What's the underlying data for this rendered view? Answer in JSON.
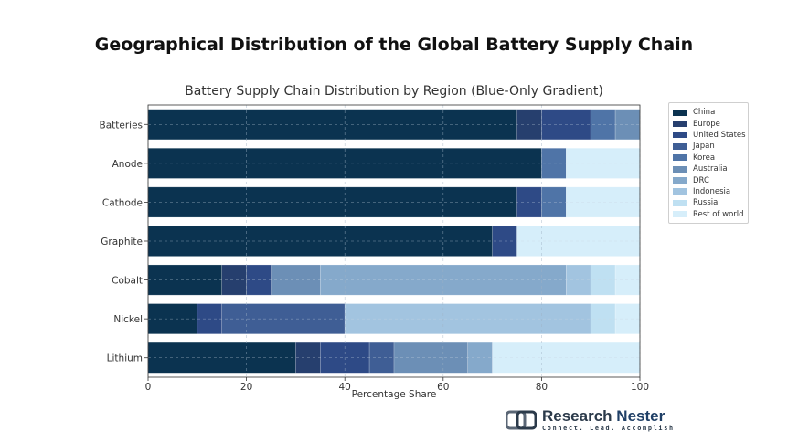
{
  "main_title": "Geographical Distribution of the Global Battery Supply Chain",
  "chart_data": {
    "type": "bar",
    "orientation": "horizontal",
    "stacked": true,
    "title": "Battery Supply Chain Distribution by Region (Blue-Only Gradient)",
    "xlabel": "Percentage Share",
    "ylabel": "",
    "xlim": [
      0,
      100
    ],
    "xticks": [
      0,
      20,
      40,
      60,
      80,
      100
    ],
    "grid": true,
    "legend_position": "right",
    "categories": [
      "Batteries",
      "Anode",
      "Cathode",
      "Graphite",
      "Cobalt",
      "Nickel",
      "Lithium"
    ],
    "series": [
      {
        "name": "China",
        "color": "#0b3350",
        "values": [
          75,
          80,
          75,
          70,
          15,
          10,
          30
        ]
      },
      {
        "name": "Europe",
        "color": "#263f6e",
        "values": [
          5,
          0,
          0,
          0,
          5,
          0,
          5
        ]
      },
      {
        "name": "United States",
        "color": "#2e4a86",
        "values": [
          10,
          0,
          5,
          5,
          5,
          5,
          10
        ]
      },
      {
        "name": "Japan",
        "color": "#3f5e95",
        "values": [
          0,
          0,
          0,
          0,
          0,
          25,
          5
        ]
      },
      {
        "name": "Korea",
        "color": "#4f74a7",
        "values": [
          5,
          5,
          5,
          0,
          0,
          0,
          0
        ]
      },
      {
        "name": "Australia",
        "color": "#6c8fb6",
        "values": [
          5,
          0,
          0,
          0,
          10,
          0,
          15
        ]
      },
      {
        "name": "DRC",
        "color": "#85a9cb",
        "values": [
          0,
          0,
          0,
          0,
          50,
          0,
          5
        ]
      },
      {
        "name": "Indonesia",
        "color": "#a2c4e0",
        "values": [
          0,
          0,
          0,
          0,
          5,
          50,
          0
        ]
      },
      {
        "name": "Russia",
        "color": "#bfe0f2",
        "values": [
          0,
          0,
          0,
          0,
          5,
          5,
          0
        ]
      },
      {
        "name": "Rest of world",
        "color": "#d6eefa",
        "values": [
          0,
          15,
          15,
          25,
          5,
          5,
          30
        ]
      }
    ]
  },
  "logo": {
    "name_part1": "Research",
    "name_part2": "Nester",
    "tagline": "Connect. Lead. Accomplish"
  }
}
